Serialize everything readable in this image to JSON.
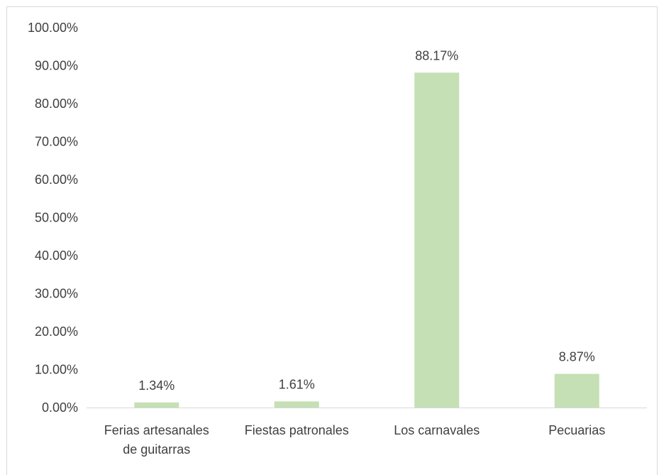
{
  "chart_data": {
    "type": "bar",
    "title": "",
    "xlabel": "",
    "ylabel": "",
    "categories": [
      [
        "Ferias artesanales",
        "de guitarras"
      ],
      [
        "Fiestas patronales"
      ],
      [
        "Los carnavales"
      ],
      [
        "Pecuarias"
      ]
    ],
    "values": [
      1.34,
      1.61,
      88.17,
      8.87
    ],
    "data_labels": [
      "1.34%",
      "1.61%",
      "88.17%",
      "8.87%"
    ],
    "y_ticks": [
      "0.00%",
      "10.00%",
      "20.00%",
      "30.00%",
      "40.00%",
      "50.00%",
      "60.00%",
      "70.00%",
      "80.00%",
      "90.00%",
      "100.00%"
    ],
    "ylim": [
      0,
      100
    ],
    "grid": false,
    "legend": "none",
    "bar_color": "#c5e0b4",
    "axis_color": "#d9d9d9",
    "text_color": "#404040"
  }
}
